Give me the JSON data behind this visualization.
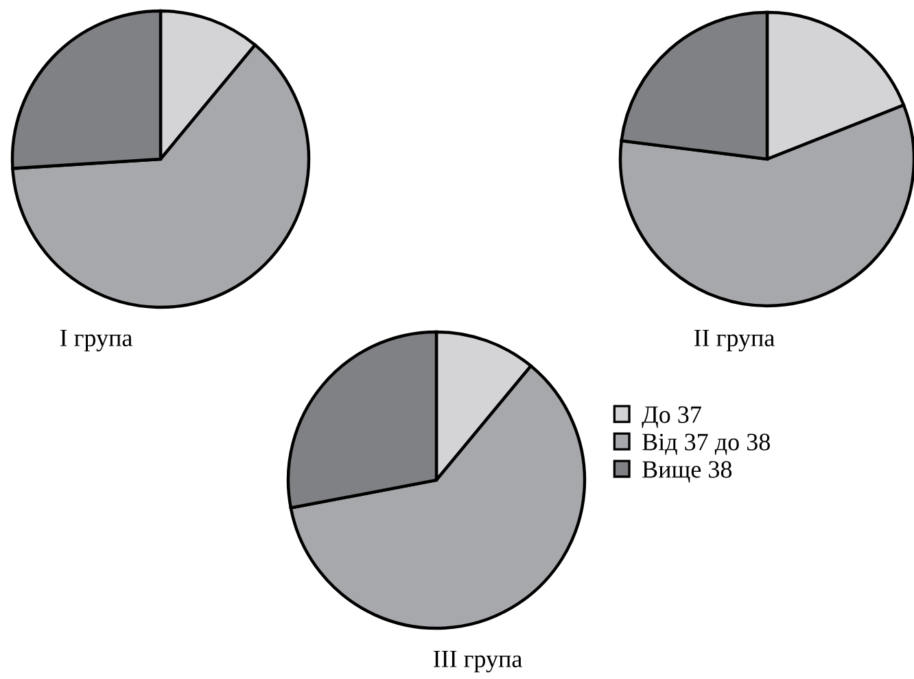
{
  "chart_data": [
    {
      "type": "pie",
      "title": "I група",
      "categories": [
        null,
        null,
        null
      ],
      "values": [
        11,
        63,
        26
      ],
      "colors": [
        "#d4d4d6",
        "#a7a8ab",
        "#808185"
      ],
      "legend": false
    },
    {
      "type": "pie",
      "title": "II група",
      "categories": [
        null,
        null,
        null
      ],
      "values": [
        19,
        58,
        23
      ],
      "colors": [
        "#d4d4d6",
        "#a7a8ab",
        "#808185"
      ],
      "legend": false
    },
    {
      "type": "pie",
      "title": "III група",
      "categories": [
        "До 37",
        "Від 37 до 38",
        "Вище 38"
      ],
      "values": [
        11,
        61,
        28
      ],
      "colors": [
        "#d4d4d6",
        "#a7a8ab",
        "#808185"
      ],
      "legend": "right"
    }
  ]
}
